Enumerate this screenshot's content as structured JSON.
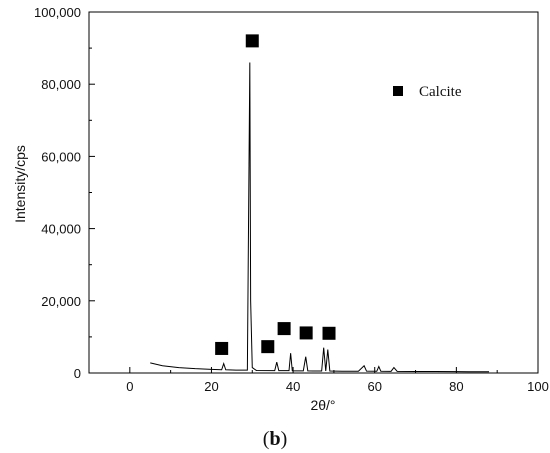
{
  "chart_data": {
    "type": "line",
    "title": "",
    "xlabel": "2θ/°",
    "ylabel": "Intensity/cps",
    "xlim": [
      -10,
      100
    ],
    "ylim": [
      0,
      100000
    ],
    "xticks": [
      0,
      20,
      40,
      60,
      80,
      100
    ],
    "xtick_labels": [
      "0",
      "20",
      "40",
      "60",
      "80",
      "100"
    ],
    "yticks": [
      0,
      20000,
      40000,
      60000,
      80000,
      100000
    ],
    "ytick_labels": [
      "0",
      "20,000",
      "40,000",
      "60,000",
      "80,000",
      "100,000"
    ],
    "grid": false,
    "legend": {
      "placement": "top-right",
      "entries": [
        {
          "label": "Calcite",
          "marker": "square"
        }
      ]
    },
    "series": [
      {
        "color": "#000000",
        "x": [
          5,
          8,
          12,
          16,
          20,
          22.5,
          23.0,
          23.5,
          26,
          28.8,
          29.2,
          29.4,
          29.6,
          30.0,
          31,
          35.5,
          36.0,
          36.5,
          38.5,
          39.0,
          39.4,
          39.8,
          40.2,
          42.5,
          43.1,
          43.6,
          45,
          47.0,
          47.5,
          48.0,
          48.5,
          49.0,
          52,
          56,
          57.4,
          58,
          60.5,
          61,
          61.5,
          64,
          64.7,
          65.5,
          70,
          75,
          80,
          83,
          86,
          88
        ],
        "y": [
          2800,
          2000,
          1500,
          1200,
          1000,
          900,
          2600,
          900,
          800,
          800,
          58000,
          86000,
          20000,
          1500,
          700,
          650,
          3000,
          650,
          650,
          650,
          5500,
          650,
          600,
          600,
          4500,
          600,
          550,
          550,
          7000,
          550,
          6500,
          550,
          500,
          500,
          2000,
          500,
          480,
          1800,
          480,
          460,
          1500,
          460,
          430,
          400,
          380,
          360,
          340,
          330
        ]
      }
    ],
    "markers": [
      {
        "label": "Calcite",
        "x": 22.5,
        "y": 6800
      },
      {
        "label": "Calcite",
        "x": 30.0,
        "y": 92000
      },
      {
        "label": "Calcite",
        "x": 33.8,
        "y": 7300
      },
      {
        "label": "Calcite",
        "x": 37.8,
        "y": 12300
      },
      {
        "label": "Calcite",
        "x": 43.2,
        "y": 11100
      },
      {
        "label": "Calcite",
        "x": 48.8,
        "y": 11000
      }
    ],
    "panel_label": {
      "open": "(",
      "letter": "b",
      "close": ")"
    }
  }
}
